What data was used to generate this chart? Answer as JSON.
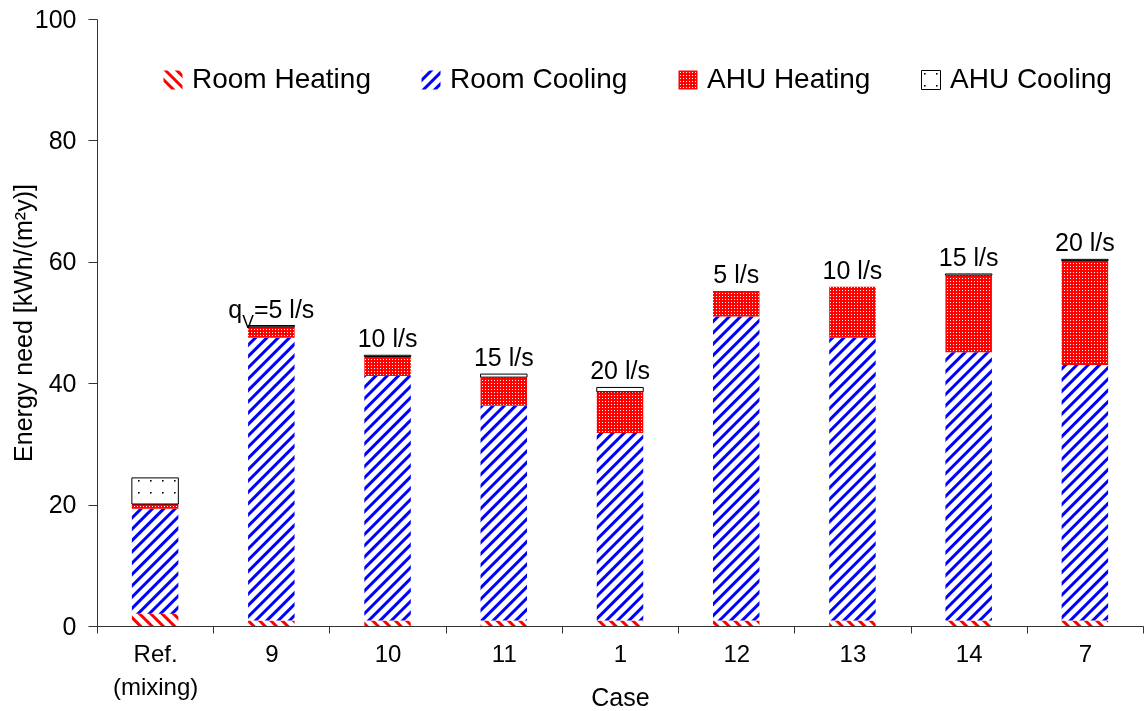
{
  "chart_data": {
    "type": "bar",
    "stacked": true,
    "xlabel": "Case",
    "ylabel": "Energy need [kWh/(m²y)]",
    "categories": [
      "Ref.\n(mixing)",
      "9",
      "10",
      "11",
      "1",
      "12",
      "13",
      "14",
      "7"
    ],
    "series": [
      {
        "name": "Room Heating",
        "color": "#ff0000",
        "values": [
          2.0,
          0.9,
          0.9,
          0.9,
          0.9,
          0.9,
          0.9,
          0.9,
          0.9
        ]
      },
      {
        "name": "Room Cooling",
        "color": "#0000ff",
        "values": [
          17.3,
          46.6,
          40.3,
          35.4,
          30.9,
          50.1,
          46.6,
          44.2,
          42.1
        ]
      },
      {
        "name": "AHU Heating",
        "color": "#ff0000",
        "values": [
          0.8,
          1.8,
          3.2,
          4.7,
          6.8,
          4.2,
          8.4,
          12.7,
          17.2
        ]
      },
      {
        "name": "AHU Cooling",
        "color": "#000000",
        "values": [
          4.3,
          0.2,
          0.2,
          0.5,
          0.7,
          null,
          null,
          0.2,
          0.2
        ]
      }
    ],
    "ylim": [
      0,
      100
    ],
    "yticks": [
      0,
      20,
      40,
      60,
      80,
      100
    ],
    "legend": "top",
    "annotations": [
      {
        "text": "q$_{V}$=5 l/s",
        "x": "9",
        "y": 49.5
      },
      {
        "text": "10 l/s",
        "x": "10",
        "y": 44.6
      },
      {
        "text": "15 l/s",
        "x": "11",
        "y": 41.5
      },
      {
        "text": "20 l/s",
        "x": "1",
        "y": 39.3
      },
      {
        "text": "5 l/s",
        "x": "12",
        "y": 55.2
      },
      {
        "text": "10 l/s",
        "x": "13",
        "y": 55.9
      },
      {
        "text": "15 l/s",
        "x": "14",
        "y": 58.0
      },
      {
        "text": "20 l/s",
        "x": "7",
        "y": 60.4
      }
    ]
  }
}
